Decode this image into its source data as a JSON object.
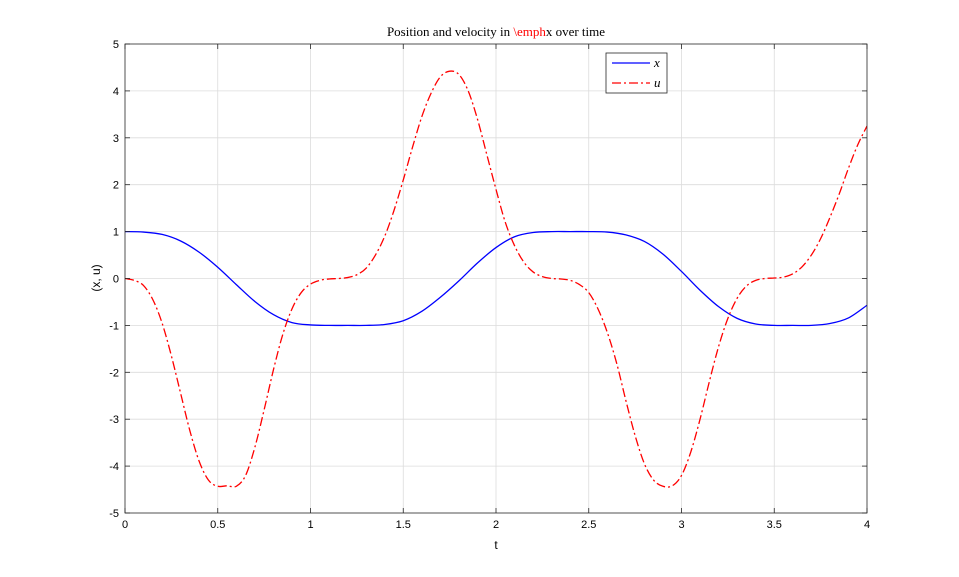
{
  "chart_data": {
    "type": "line",
    "title_parts": [
      {
        "text": "Position and velocity in ",
        "color": "#000000"
      },
      {
        "text": "\\emph",
        "color": "#ff0000"
      },
      {
        "text": "x over time",
        "color": "#000000"
      }
    ],
    "xlabel": "t",
    "ylabel": "(x, u)",
    "xlim": [
      0,
      4
    ],
    "ylim": [
      -5,
      5
    ],
    "xticks": [
      0,
      0.5,
      1,
      1.5,
      2,
      2.5,
      3,
      3.5,
      4
    ],
    "xtick_labels": [
      "0",
      "0.5",
      "1",
      "1.5",
      "2",
      "2.5",
      "3",
      "3.5",
      "4"
    ],
    "yticks": [
      -5,
      -4,
      -3,
      -2,
      -1,
      0,
      1,
      2,
      3,
      4,
      5
    ],
    "ytick_labels": [
      "-5",
      "-4",
      "-3",
      "-2",
      "-1",
      "0",
      "1",
      "2",
      "3",
      "4",
      "5"
    ],
    "grid": true,
    "legend_position": "top-right",
    "series": [
      {
        "name": "x",
        "color": "#0000ff",
        "dash": "solid",
        "x": [
          0,
          0.1,
          0.2,
          0.3,
          0.4,
          0.5,
          0.6,
          0.7,
          0.8,
          0.9,
          1.0,
          1.1,
          1.2,
          1.3,
          1.4,
          1.5,
          1.6,
          1.7,
          1.8,
          1.9,
          2.0,
          2.1,
          2.2,
          2.3,
          2.4,
          2.5,
          2.6,
          2.7,
          2.8,
          2.9,
          3.0,
          3.1,
          3.2,
          3.3,
          3.4,
          3.5,
          3.6,
          3.7,
          3.8,
          3.9,
          4.0
        ],
        "y": [
          1.0,
          0.99,
          0.94,
          0.8,
          0.56,
          0.24,
          -0.13,
          -0.49,
          -0.77,
          -0.94,
          -0.99,
          -1.0,
          -1.0,
          -1.0,
          -0.98,
          -0.9,
          -0.7,
          -0.4,
          -0.05,
          0.33,
          0.66,
          0.89,
          0.98,
          1.0,
          1.0,
          1.0,
          0.99,
          0.93,
          0.79,
          0.52,
          0.15,
          -0.25,
          -0.6,
          -0.85,
          -0.97,
          -1.0,
          -1.0,
          -1.0,
          -0.96,
          -0.84,
          -0.57
        ]
      },
      {
        "name": "u",
        "color": "#ff0000",
        "dash": "dashdot",
        "x": [
          0,
          0.05,
          0.1,
          0.15,
          0.2,
          0.25,
          0.3,
          0.35,
          0.4,
          0.45,
          0.5,
          0.55,
          0.6,
          0.65,
          0.7,
          0.75,
          0.8,
          0.85,
          0.9,
          0.95,
          1.0,
          1.05,
          1.1,
          1.15,
          1.2,
          1.25,
          1.3,
          1.35,
          1.4,
          1.45,
          1.5,
          1.55,
          1.6,
          1.65,
          1.7,
          1.75,
          1.8,
          1.85,
          1.9,
          1.95,
          2.0,
          2.05,
          2.1,
          2.15,
          2.2,
          2.25,
          2.3,
          2.35,
          2.4,
          2.45,
          2.5,
          2.55,
          2.6,
          2.65,
          2.7,
          2.75,
          2.8,
          2.85,
          2.9,
          2.95,
          3.0,
          3.05,
          3.1,
          3.15,
          3.2,
          3.25,
          3.3,
          3.35,
          3.4,
          3.45,
          3.5,
          3.55,
          3.6,
          3.65,
          3.7,
          3.75,
          3.8,
          3.85,
          3.9,
          3.95,
          4.0
        ],
        "y": [
          0.0,
          -0.04,
          -0.15,
          -0.45,
          -0.95,
          -1.65,
          -2.45,
          -3.25,
          -3.9,
          -4.3,
          -4.43,
          -4.42,
          -4.43,
          -4.2,
          -3.6,
          -2.8,
          -1.95,
          -1.2,
          -0.65,
          -0.3,
          -0.12,
          -0.04,
          -0.01,
          0.0,
          0.02,
          0.08,
          0.22,
          0.5,
          0.9,
          1.45,
          2.1,
          2.8,
          3.45,
          3.95,
          4.3,
          4.42,
          4.35,
          4.0,
          3.4,
          2.65,
          1.9,
          1.2,
          0.7,
          0.35,
          0.14,
          0.04,
          0.0,
          -0.01,
          -0.04,
          -0.13,
          -0.3,
          -0.65,
          -1.15,
          -1.8,
          -2.6,
          -3.35,
          -3.95,
          -4.3,
          -4.43,
          -4.42,
          -4.2,
          -3.7,
          -3.0,
          -2.2,
          -1.45,
          -0.85,
          -0.42,
          -0.16,
          -0.04,
          0.0,
          0.01,
          0.03,
          0.1,
          0.25,
          0.5,
          0.85,
          1.3,
          1.8,
          2.35,
          2.85,
          3.25
        ]
      }
    ]
  }
}
